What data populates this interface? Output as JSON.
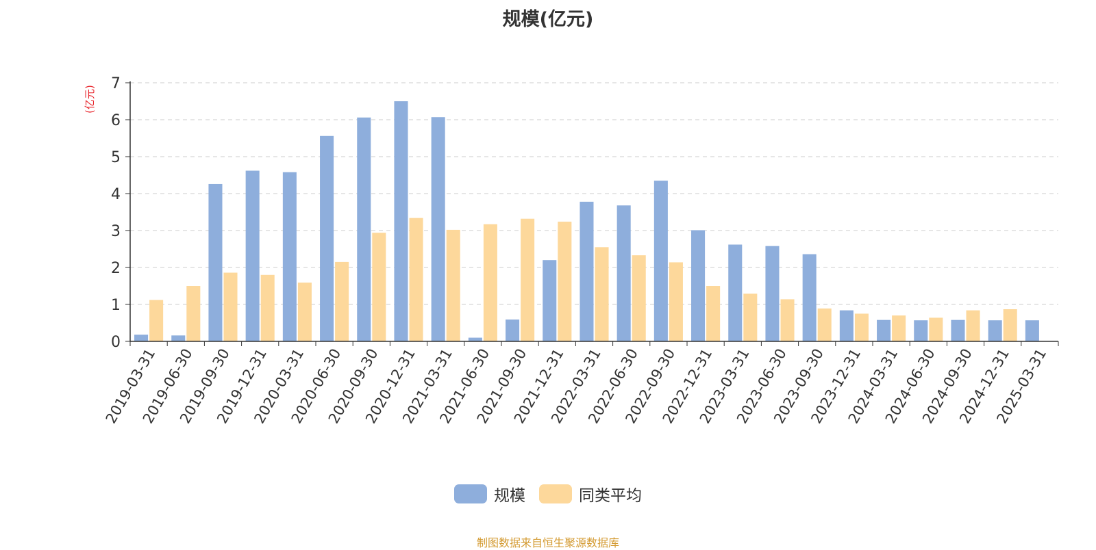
{
  "title": "规模(亿元)",
  "source": "制图数据来自恒生聚源数据库",
  "chart_data": {
    "type": "bar",
    "title": "规模(亿元)",
    "ylabel": "(亿元)",
    "ylim": [
      0,
      7
    ],
    "yticks": [
      0,
      1,
      2,
      3,
      4,
      5,
      6,
      7
    ],
    "grid": true,
    "legend_position": "bottom-center",
    "categories": [
      "2019-03-31",
      "2019-06-30",
      "2019-09-30",
      "2019-12-31",
      "2020-03-31",
      "2020-06-30",
      "2020-09-30",
      "2020-12-31",
      "2021-03-31",
      "2021-06-30",
      "2021-09-30",
      "2021-12-31",
      "2022-03-31",
      "2022-06-30",
      "2022-09-30",
      "2022-12-31",
      "2023-03-31",
      "2023-06-30",
      "2023-09-30",
      "2023-12-31",
      "2024-03-31",
      "2024-06-30",
      "2024-09-30",
      "2024-12-31",
      "2025-03-31"
    ],
    "series": [
      {
        "name": "规模",
        "color": "#8eaedc",
        "values": [
          0.18,
          0.16,
          4.26,
          4.62,
          4.58,
          5.56,
          6.06,
          6.5,
          6.07,
          0.1,
          0.59,
          2.2,
          3.78,
          3.68,
          4.35,
          3.01,
          2.62,
          2.58,
          2.36,
          0.84,
          0.58,
          0.57,
          0.58,
          0.57,
          0.57
        ]
      },
      {
        "name": "同类平均",
        "color": "#fdd89b",
        "values": [
          1.12,
          1.5,
          1.86,
          1.8,
          1.59,
          2.15,
          2.94,
          3.34,
          3.02,
          3.17,
          3.32,
          3.24,
          2.55,
          2.33,
          2.14,
          1.5,
          1.29,
          1.14,
          0.89,
          0.75,
          0.7,
          0.64,
          0.84,
          0.87,
          null
        ]
      }
    ]
  }
}
